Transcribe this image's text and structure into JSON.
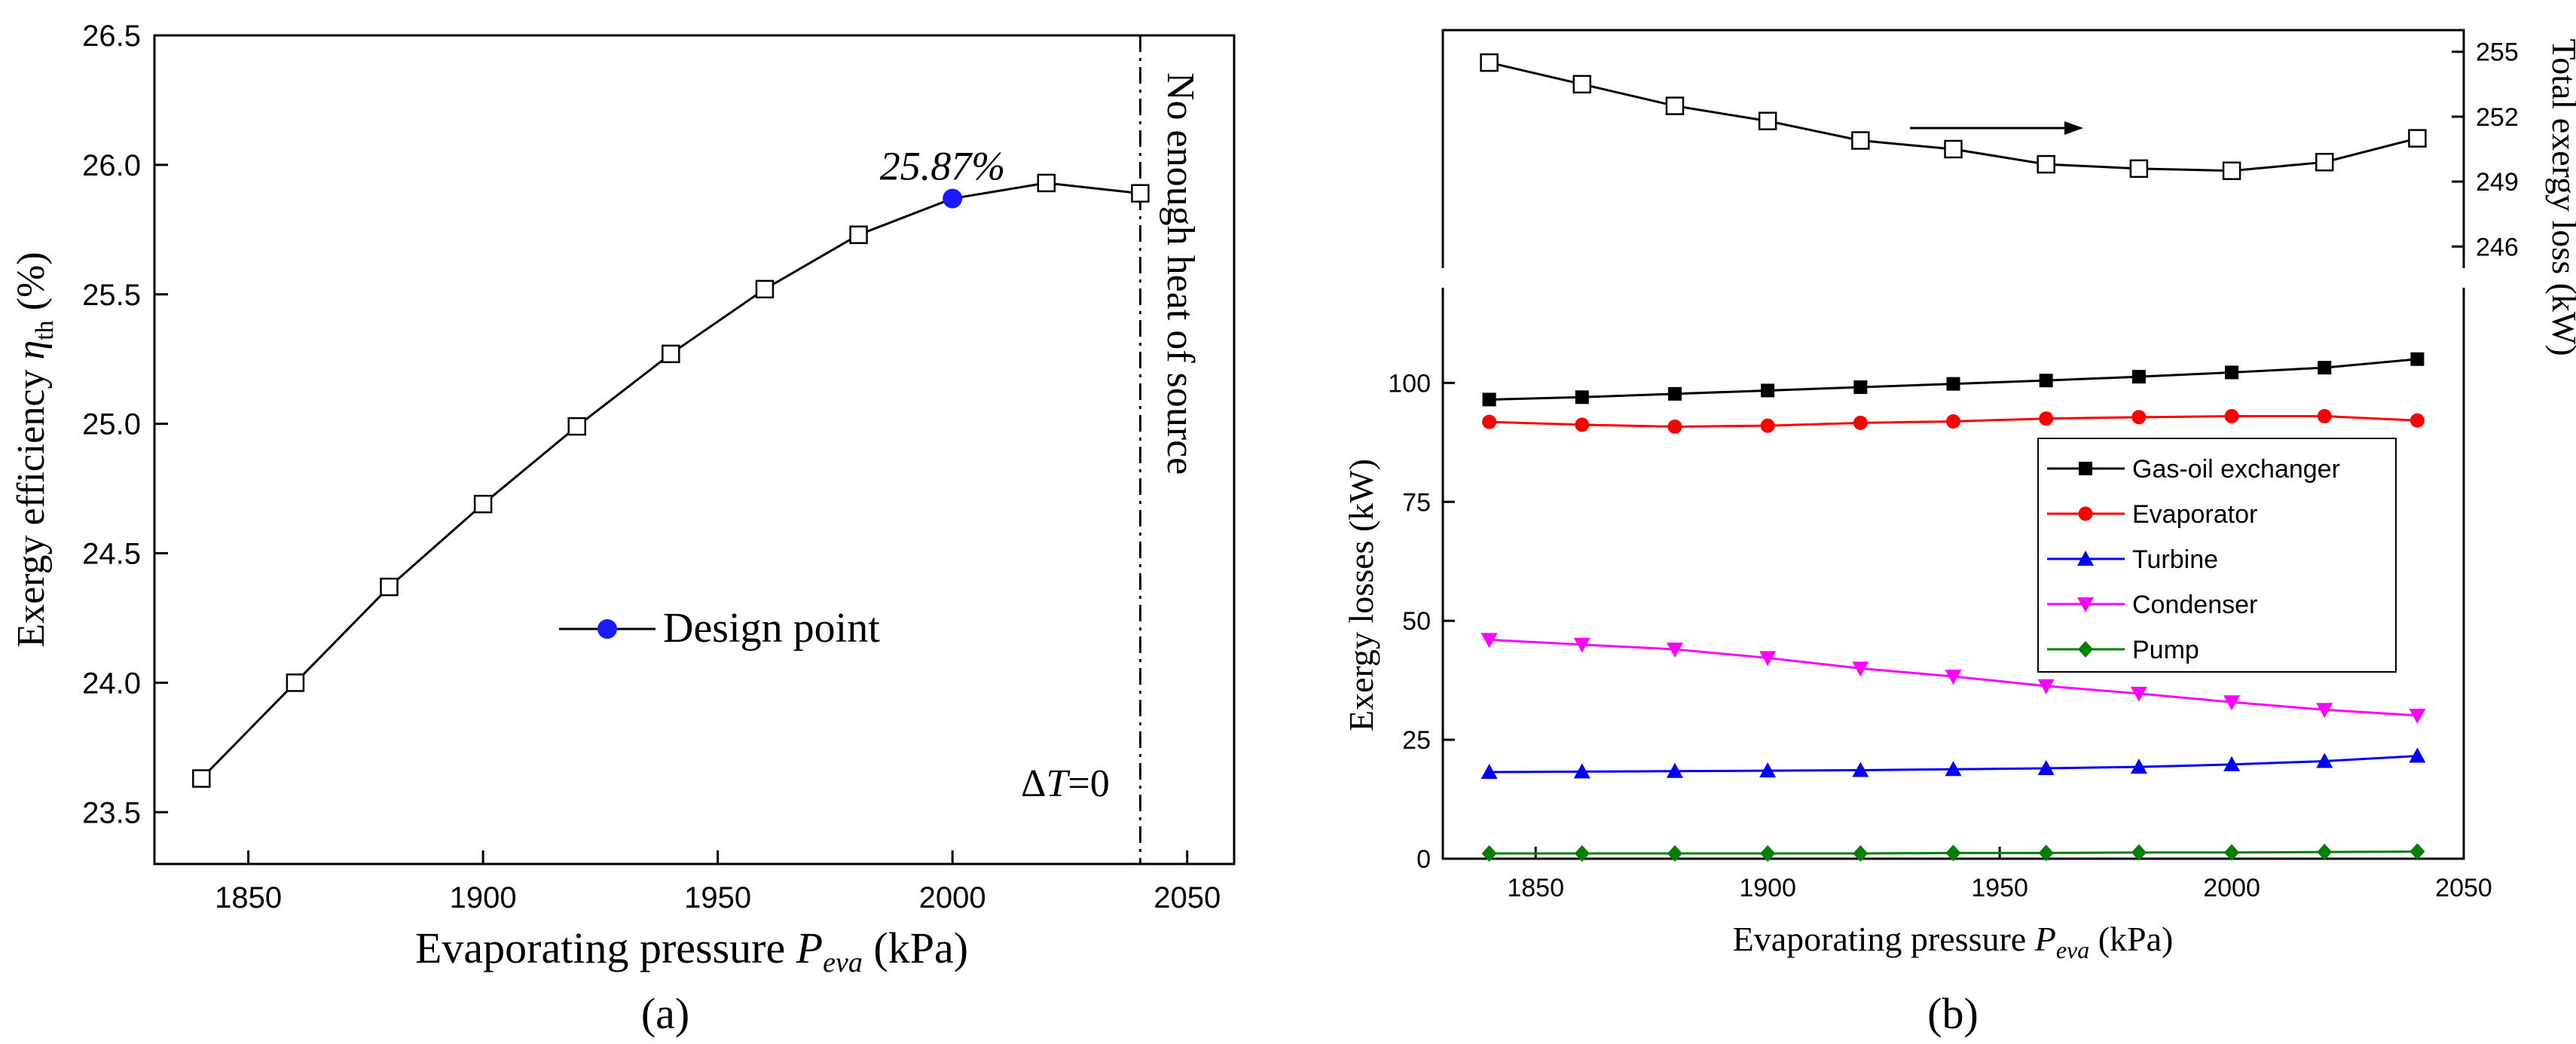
{
  "chart_data": [
    {
      "panel_label": "(a)",
      "type": "line",
      "xlabel_main": "Evaporating pressure ",
      "xlabel_var": "P",
      "xlabel_sub": "eva",
      "xlabel_unit": "  (kPa)",
      "ylabel_main": "Exergy efficiency ",
      "ylabel_var": "η",
      "ylabel_sub": "th",
      "ylabel_unit": " (%)",
      "xlim": [
        1830,
        2060
      ],
      "ylim": [
        23.3,
        26.5
      ],
      "xticks": [
        1850,
        1900,
        1950,
        2000,
        2050
      ],
      "yticks": [
        23.5,
        24.0,
        24.5,
        25.0,
        25.5,
        26.0,
        26.5
      ],
      "ytick_labels": [
        "23.5",
        "24.0",
        "24.5",
        "25.0",
        "25.5",
        "26.0",
        "26.5"
      ],
      "series": [
        {
          "x": [
            1840,
            1860,
            1880,
            1900,
            1920,
            1940,
            1960,
            1980,
            2000,
            2020,
            2040
          ],
          "values": [
            23.63,
            24.0,
            24.37,
            24.69,
            24.99,
            25.27,
            25.52,
            25.73,
            25.87,
            25.93,
            25.89
          ],
          "color": "#000000",
          "marker": "open-square"
        }
      ],
      "design_point": {
        "x": 2000,
        "y": 25.87,
        "color": "#1a1aff",
        "label": "25.87%"
      },
      "legend_entry": "Design point",
      "vline": {
        "x": 2040,
        "style": "dash-dot"
      },
      "annotation_vertical": "No enough heat of source",
      "annotation_delta_sym": "Δ",
      "annotation_delta_var": "T",
      "annotation_delta_val": "=0"
    },
    {
      "panel_label": "(b)",
      "type": "line",
      "xlabel_main": "Evaporating pressure ",
      "xlabel_var": "P",
      "xlabel_sub": "eva",
      "xlabel_unit": " (kPa)",
      "ylabel_left": "Exergy losses (kW)",
      "ylabel_right": "Total exergy loss (kW)",
      "xlim": [
        1830,
        2050
      ],
      "xticks": [
        1850,
        1900,
        1950,
        2000,
        2050
      ],
      "ylim_lower": [
        0,
        120
      ],
      "yticks_lower": [
        0,
        25,
        50,
        75,
        100
      ],
      "ylim_upper": [
        245,
        256
      ],
      "yticks_upper": [
        246,
        249,
        252,
        255
      ],
      "x": [
        1840,
        1860,
        1880,
        1900,
        1920,
        1940,
        1960,
        1980,
        2000,
        2020,
        2040
      ],
      "total": {
        "values": [
          254.5,
          253.5,
          252.5,
          251.8,
          250.9,
          250.5,
          249.8,
          249.6,
          249.5,
          249.9,
          251.0
        ],
        "color": "#000000",
        "marker": "open-square"
      },
      "series": [
        {
          "name": "Gas-oil exchanger",
          "color": "#000000",
          "marker": "square",
          "values": [
            96.5,
            97.0,
            97.7,
            98.4,
            99.1,
            99.8,
            100.5,
            101.3,
            102.2,
            103.2,
            105.0
          ]
        },
        {
          "name": "Evaporator",
          "color": "#ff0000",
          "marker": "circle",
          "values": [
            91.8,
            91.2,
            90.8,
            91.0,
            91.6,
            91.9,
            92.5,
            92.8,
            93.0,
            93.0,
            92.1
          ]
        },
        {
          "name": "Turbine",
          "color": "#0000ff",
          "marker": "triangle-up",
          "values": [
            18.2,
            18.3,
            18.4,
            18.5,
            18.6,
            18.8,
            19.0,
            19.3,
            19.8,
            20.5,
            21.6
          ]
        },
        {
          "name": "Condenser",
          "color": "#ff00ff",
          "marker": "triangle-down",
          "values": [
            46.0,
            45.0,
            44.0,
            42.2,
            40.0,
            38.3,
            36.3,
            34.7,
            32.9,
            31.3,
            30.1
          ]
        },
        {
          "name": "Pump",
          "color": "#008000",
          "marker": "diamond",
          "values": [
            1.1,
            1.1,
            1.1,
            1.1,
            1.1,
            1.2,
            1.2,
            1.3,
            1.3,
            1.4,
            1.5
          ]
        }
      ]
    }
  ]
}
